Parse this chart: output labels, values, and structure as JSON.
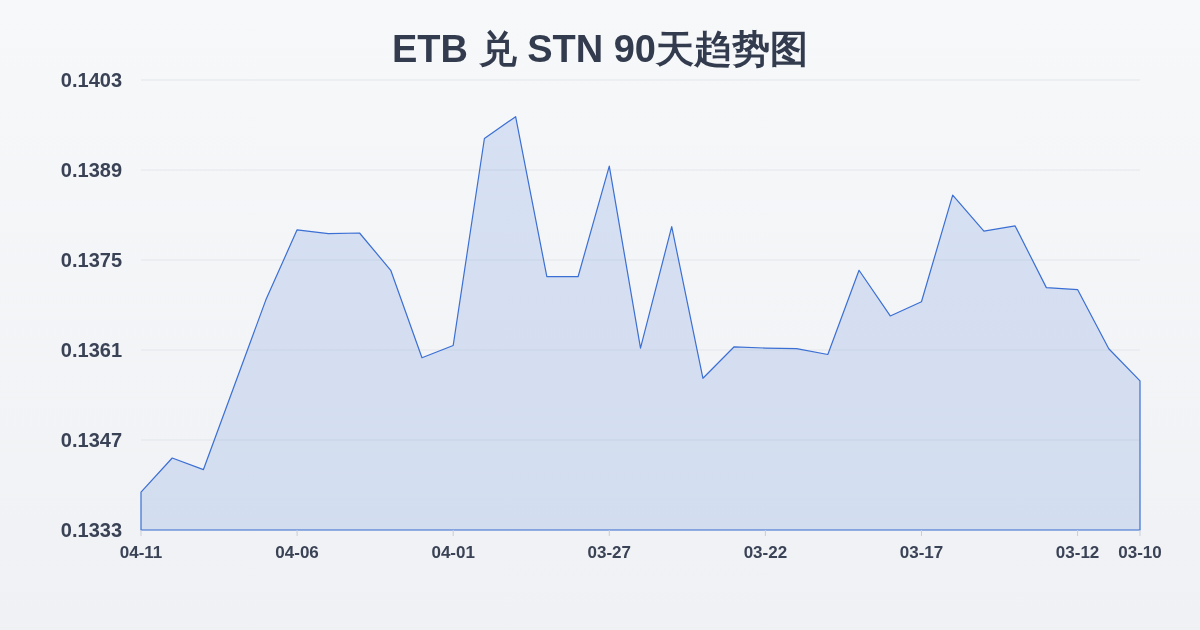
{
  "chart_data": {
    "type": "area",
    "title": "ETB 兑 STN 90天趋势图",
    "categories": [
      "04-11",
      null,
      null,
      null,
      null,
      "04-06",
      null,
      null,
      null,
      null,
      "04-01",
      null,
      null,
      null,
      null,
      "03-27",
      null,
      null,
      null,
      null,
      "03-22",
      null,
      null,
      null,
      null,
      "03-17",
      null,
      null,
      null,
      null,
      "03-12",
      null,
      "03-10"
    ],
    "series": [
      {
        "color": "#3b6fd4",
        "values": [
          0.13389,
          0.13442,
          0.13424,
          0.13556,
          0.13688,
          0.13797,
          0.13791,
          0.13792,
          0.13734,
          0.13598,
          0.13617,
          0.13939,
          0.13973,
          0.13724,
          0.13724,
          0.13896,
          0.13613,
          0.13802,
          0.13566,
          0.13615,
          0.13613,
          0.13612,
          0.13603,
          0.13734,
          0.13663,
          0.13685,
          0.13851,
          0.13795,
          0.13803,
          0.13707,
          0.13704,
          0.13612,
          0.13562
        ]
      }
    ],
    "ylim": [
      0.1333,
      0.1403
    ],
    "yticks": [
      0.1333,
      0.1347,
      0.1361,
      0.1375,
      0.1389,
      0.1403
    ],
    "grid": "y"
  }
}
